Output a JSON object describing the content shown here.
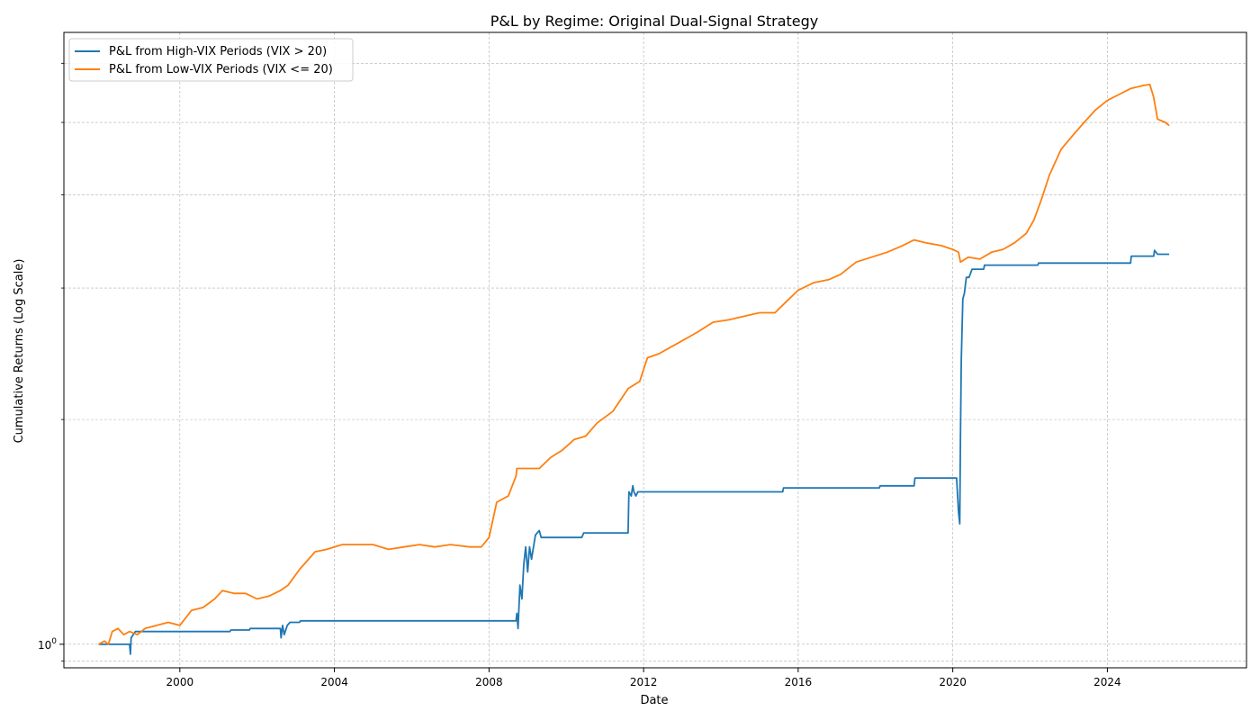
{
  "chart_data": {
    "type": "line",
    "title": "P&L by Regime: Original Dual-Signal Strategy",
    "xlabel": "Date",
    "ylabel": "Cumulative Returns (Log Scale)",
    "y_scale": "log",
    "grid": true,
    "legend_position": "top-left",
    "x_range": [
      1997.0,
      2027.6
    ],
    "y_range": [
      0.93,
      6.6
    ],
    "x_ticks": [
      {
        "value": 2000,
        "label": "2000"
      },
      {
        "value": 2004,
        "label": "2004"
      },
      {
        "value": 2008,
        "label": "2008"
      },
      {
        "value": 2012,
        "label": "2012"
      },
      {
        "value": 2016,
        "label": "2016"
      },
      {
        "value": 2020,
        "label": "2020"
      },
      {
        "value": 2024,
        "label": "2024"
      }
    ],
    "y_major_ticks": [
      {
        "value": 1,
        "label": "10^0"
      }
    ],
    "y_minor_ticks": [
      0.95,
      2,
      3,
      4,
      5,
      6
    ],
    "series": [
      {
        "name": "P&L from High-VIX Periods (VIX > 20)",
        "color": "#1f77b4",
        "points": [
          [
            1997.9,
            1.0
          ],
          [
            1998.7,
            1.0
          ],
          [
            1998.72,
            0.97
          ],
          [
            1998.74,
            1.02
          ],
          [
            1998.85,
            1.04
          ],
          [
            1999.0,
            1.04
          ],
          [
            2001.3,
            1.04
          ],
          [
            2001.32,
            1.045
          ],
          [
            2001.8,
            1.045
          ],
          [
            2001.82,
            1.05
          ],
          [
            2002.6,
            1.05
          ],
          [
            2002.62,
            1.02
          ],
          [
            2002.66,
            1.06
          ],
          [
            2002.7,
            1.03
          ],
          [
            2002.78,
            1.06
          ],
          [
            2002.85,
            1.07
          ],
          [
            2002.9,
            1.07
          ],
          [
            2003.1,
            1.07
          ],
          [
            2003.12,
            1.075
          ],
          [
            2008.7,
            1.075
          ],
          [
            2008.72,
            1.1
          ],
          [
            2008.75,
            1.05
          ],
          [
            2008.8,
            1.2
          ],
          [
            2008.85,
            1.15
          ],
          [
            2008.9,
            1.28
          ],
          [
            2008.95,
            1.35
          ],
          [
            2009.0,
            1.25
          ],
          [
            2009.05,
            1.35
          ],
          [
            2009.1,
            1.3
          ],
          [
            2009.2,
            1.4
          ],
          [
            2009.3,
            1.42
          ],
          [
            2009.35,
            1.39
          ],
          [
            2010.4,
            1.39
          ],
          [
            2010.45,
            1.41
          ],
          [
            2011.6,
            1.41
          ],
          [
            2011.62,
            1.6
          ],
          [
            2011.68,
            1.58
          ],
          [
            2011.72,
            1.63
          ],
          [
            2011.75,
            1.6
          ],
          [
            2011.8,
            1.58
          ],
          [
            2011.85,
            1.6
          ],
          [
            2015.6,
            1.6
          ],
          [
            2015.62,
            1.62
          ],
          [
            2018.1,
            1.62
          ],
          [
            2018.12,
            1.63
          ],
          [
            2019.0,
            1.63
          ],
          [
            2019.02,
            1.67
          ],
          [
            2020.1,
            1.67
          ],
          [
            2020.15,
            1.5
          ],
          [
            2020.18,
            1.45
          ],
          [
            2020.2,
            1.9
          ],
          [
            2020.22,
            2.4
          ],
          [
            2020.26,
            2.9
          ],
          [
            2020.3,
            2.95
          ],
          [
            2020.35,
            3.1
          ],
          [
            2020.42,
            3.1
          ],
          [
            2020.5,
            3.18
          ],
          [
            2020.8,
            3.18
          ],
          [
            2020.82,
            3.22
          ],
          [
            2022.2,
            3.22
          ],
          [
            2022.22,
            3.24
          ],
          [
            2024.6,
            3.24
          ],
          [
            2024.62,
            3.31
          ],
          [
            2025.2,
            3.31
          ],
          [
            2025.22,
            3.37
          ],
          [
            2025.3,
            3.33
          ],
          [
            2025.6,
            3.33
          ]
        ]
      },
      {
        "name": "P&L from Low-VIX Periods (VIX <= 20)",
        "color": "#ff7f0e",
        "points": [
          [
            1997.9,
            1.0
          ],
          [
            1998.05,
            1.01
          ],
          [
            1998.15,
            1.0
          ],
          [
            1998.25,
            1.04
          ],
          [
            1998.4,
            1.05
          ],
          [
            1998.55,
            1.03
          ],
          [
            1998.7,
            1.04
          ],
          [
            1998.9,
            1.03
          ],
          [
            1999.1,
            1.05
          ],
          [
            1999.4,
            1.06
          ],
          [
            1999.7,
            1.07
          ],
          [
            2000.0,
            1.06
          ],
          [
            2000.3,
            1.11
          ],
          [
            2000.6,
            1.12
          ],
          [
            2000.9,
            1.15
          ],
          [
            2001.1,
            1.18
          ],
          [
            2001.4,
            1.17
          ],
          [
            2001.7,
            1.17
          ],
          [
            2002.0,
            1.15
          ],
          [
            2002.3,
            1.16
          ],
          [
            2002.6,
            1.18
          ],
          [
            2002.8,
            1.2
          ],
          [
            2003.1,
            1.26
          ],
          [
            2003.5,
            1.33
          ],
          [
            2003.8,
            1.34
          ],
          [
            2004.2,
            1.36
          ],
          [
            2004.6,
            1.36
          ],
          [
            2005.0,
            1.36
          ],
          [
            2005.4,
            1.34
          ],
          [
            2005.8,
            1.35
          ],
          [
            2006.2,
            1.36
          ],
          [
            2006.6,
            1.35
          ],
          [
            2007.0,
            1.36
          ],
          [
            2007.5,
            1.35
          ],
          [
            2007.8,
            1.35
          ],
          [
            2008.0,
            1.39
          ],
          [
            2008.2,
            1.55
          ],
          [
            2008.5,
            1.58
          ],
          [
            2008.7,
            1.68
          ],
          [
            2008.72,
            1.72
          ],
          [
            2009.3,
            1.72
          ],
          [
            2009.6,
            1.78
          ],
          [
            2009.9,
            1.82
          ],
          [
            2010.2,
            1.88
          ],
          [
            2010.5,
            1.9
          ],
          [
            2010.8,
            1.98
          ],
          [
            2011.2,
            2.05
          ],
          [
            2011.6,
            2.2
          ],
          [
            2011.9,
            2.25
          ],
          [
            2012.1,
            2.42
          ],
          [
            2012.4,
            2.45
          ],
          [
            2012.7,
            2.5
          ],
          [
            2013.0,
            2.55
          ],
          [
            2013.4,
            2.62
          ],
          [
            2013.8,
            2.7
          ],
          [
            2014.2,
            2.72
          ],
          [
            2014.6,
            2.75
          ],
          [
            2015.0,
            2.78
          ],
          [
            2015.4,
            2.78
          ],
          [
            2015.7,
            2.88
          ],
          [
            2016.0,
            2.98
          ],
          [
            2016.4,
            3.05
          ],
          [
            2016.8,
            3.08
          ],
          [
            2017.1,
            3.13
          ],
          [
            2017.5,
            3.25
          ],
          [
            2017.9,
            3.3
          ],
          [
            2018.3,
            3.35
          ],
          [
            2018.7,
            3.42
          ],
          [
            2019.0,
            3.48
          ],
          [
            2019.3,
            3.45
          ],
          [
            2019.7,
            3.42
          ],
          [
            2020.0,
            3.38
          ],
          [
            2020.15,
            3.35
          ],
          [
            2020.2,
            3.25
          ],
          [
            2020.4,
            3.3
          ],
          [
            2020.7,
            3.28
          ],
          [
            2021.0,
            3.35
          ],
          [
            2021.3,
            3.38
          ],
          [
            2021.6,
            3.45
          ],
          [
            2021.9,
            3.55
          ],
          [
            2022.1,
            3.7
          ],
          [
            2022.3,
            3.95
          ],
          [
            2022.5,
            4.25
          ],
          [
            2022.8,
            4.6
          ],
          [
            2023.1,
            4.8
          ],
          [
            2023.4,
            5.0
          ],
          [
            2023.7,
            5.2
          ],
          [
            2024.0,
            5.35
          ],
          [
            2024.3,
            5.45
          ],
          [
            2024.6,
            5.55
          ],
          [
            2024.9,
            5.6
          ],
          [
            2025.1,
            5.62
          ],
          [
            2025.2,
            5.4
          ],
          [
            2025.3,
            5.05
          ],
          [
            2025.5,
            5.0
          ],
          [
            2025.6,
            4.95
          ]
        ]
      }
    ]
  }
}
